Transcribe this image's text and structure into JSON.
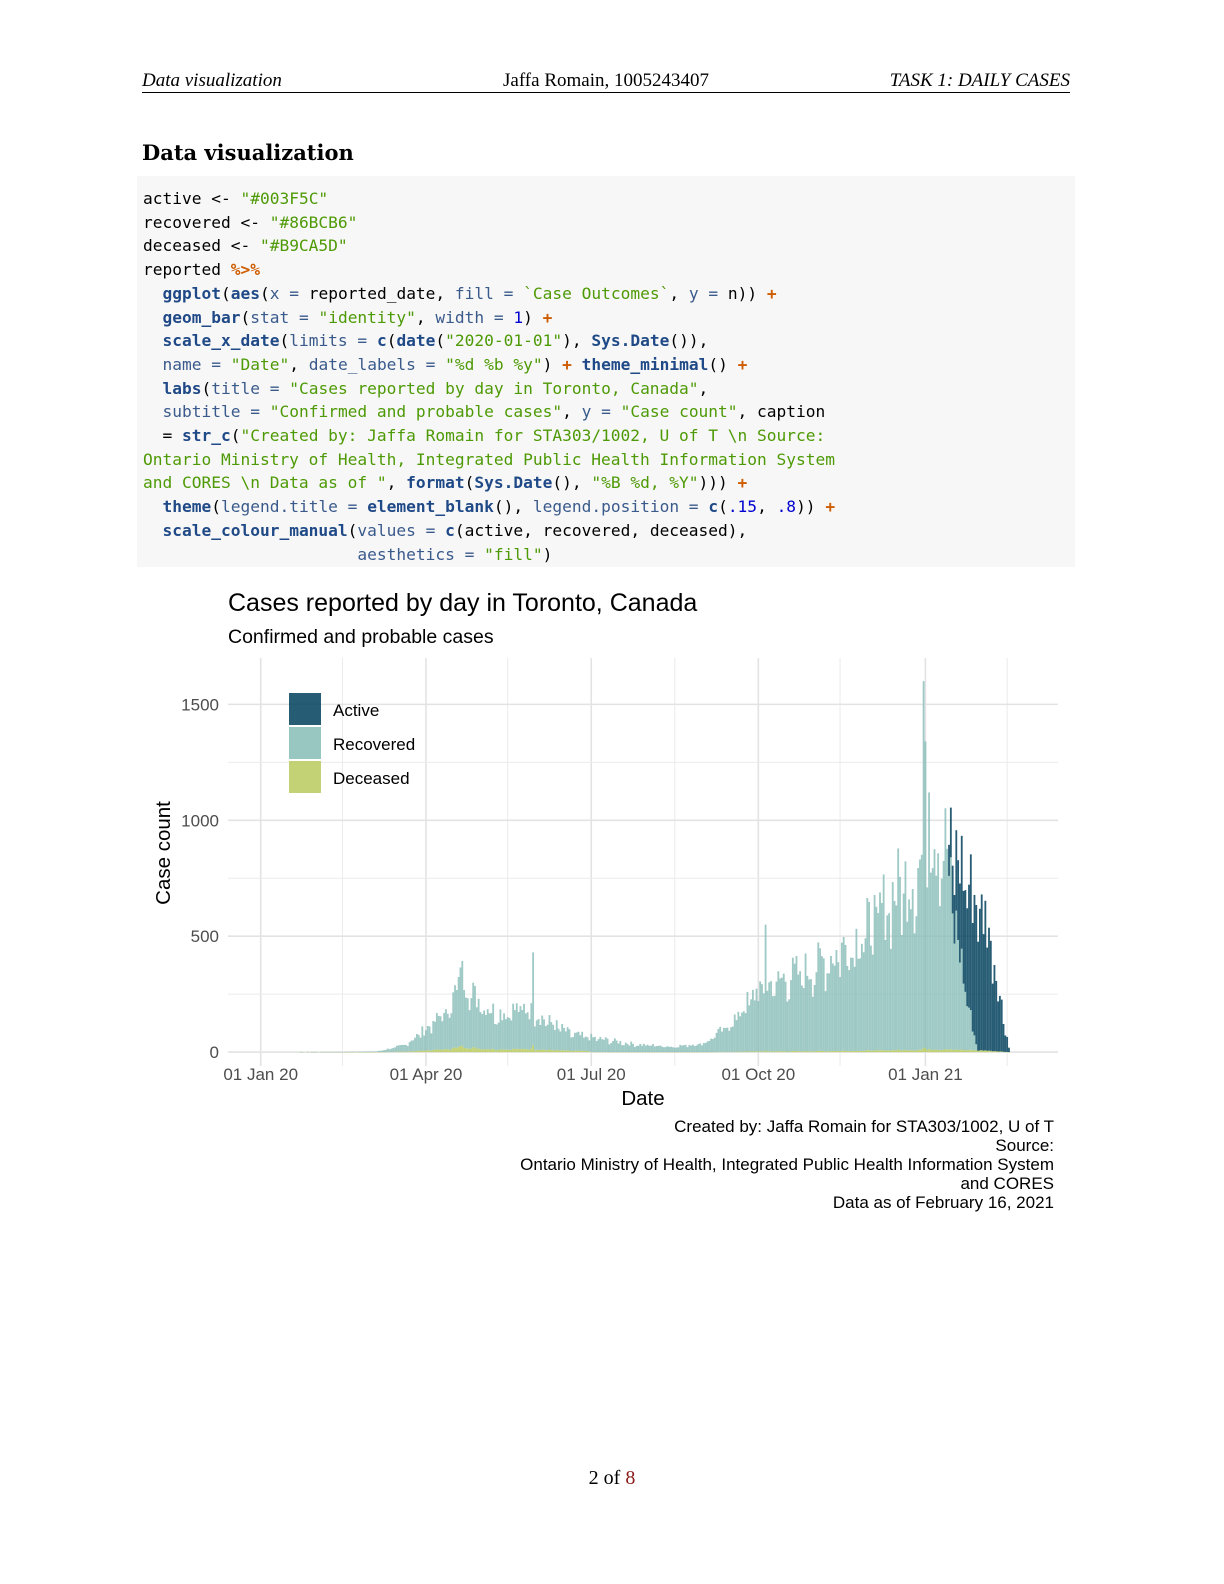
{
  "header": {
    "left": "Data visualization",
    "center": "Jaffa Romain, 1005243407",
    "right": "TASK 1: DAILY CASES"
  },
  "section_title": "Data visualization",
  "code": {
    "lines": [
      [
        [
          "t",
          "active <- "
        ],
        [
          "s",
          "\"#003F5C\""
        ]
      ],
      [
        [
          "t",
          "recovered <- "
        ],
        [
          "s",
          "\"#86BCB6\""
        ]
      ],
      [
        [
          "t",
          "deceased <- "
        ],
        [
          "s",
          "\"#B9CA5D\""
        ]
      ],
      [
        [
          "t",
          "reported "
        ],
        [
          "o",
          "%>%"
        ]
      ],
      [
        [
          "t",
          "  "
        ],
        [
          "f",
          "ggplot"
        ],
        [
          "t",
          "("
        ],
        [
          "f",
          "aes"
        ],
        [
          "t",
          "("
        ],
        [
          "a",
          "x"
        ],
        [
          "a",
          " = "
        ],
        [
          "t",
          "reported_date, "
        ],
        [
          "a",
          "fill"
        ],
        [
          "a",
          " = "
        ],
        [
          "s",
          "`Case Outcomes`"
        ],
        [
          "t",
          ", "
        ],
        [
          "a",
          "y"
        ],
        [
          "a",
          " = "
        ],
        [
          "t",
          "n)) "
        ],
        [
          "o",
          "+"
        ]
      ],
      [
        [
          "t",
          "  "
        ],
        [
          "f",
          "geom_bar"
        ],
        [
          "t",
          "("
        ],
        [
          "a",
          "stat"
        ],
        [
          "a",
          " = "
        ],
        [
          "s",
          "\"identity\""
        ],
        [
          "t",
          ", "
        ],
        [
          "a",
          "width"
        ],
        [
          "a",
          " = "
        ],
        [
          "n",
          "1"
        ],
        [
          "t",
          ") "
        ],
        [
          "o",
          "+"
        ]
      ],
      [
        [
          "t",
          "  "
        ],
        [
          "f",
          "scale_x_date"
        ],
        [
          "t",
          "("
        ],
        [
          "a",
          "limits"
        ],
        [
          "a",
          " = "
        ],
        [
          "f",
          "c"
        ],
        [
          "t",
          "("
        ],
        [
          "f",
          "date"
        ],
        [
          "t",
          "("
        ],
        [
          "s",
          "\"2020-01-01\""
        ],
        [
          "t",
          "), "
        ],
        [
          "f",
          "Sys.Date"
        ],
        [
          "t",
          "()),"
        ]
      ],
      [
        [
          "t",
          "  "
        ],
        [
          "a",
          "name"
        ],
        [
          "a",
          " = "
        ],
        [
          "s",
          "\"Date\""
        ],
        [
          "t",
          ", "
        ],
        [
          "a",
          "date_labels"
        ],
        [
          "a",
          " = "
        ],
        [
          "s",
          "\"%d %b %y\""
        ],
        [
          "t",
          ") "
        ],
        [
          "o",
          "+"
        ],
        [
          "t",
          " "
        ],
        [
          "f",
          "theme_minimal"
        ],
        [
          "t",
          "() "
        ],
        [
          "o",
          "+"
        ]
      ],
      [
        [
          "t",
          "  "
        ],
        [
          "f",
          "labs"
        ],
        [
          "t",
          "("
        ],
        [
          "a",
          "title"
        ],
        [
          "a",
          " = "
        ],
        [
          "s",
          "\"Cases reported by day in Toronto, Canada\""
        ],
        [
          "t",
          ","
        ]
      ],
      [
        [
          "t",
          "  "
        ],
        [
          "a",
          "subtitle"
        ],
        [
          "a",
          " = "
        ],
        [
          "s",
          "\"Confirmed and probable cases\""
        ],
        [
          "t",
          ", "
        ],
        [
          "a",
          "y"
        ],
        [
          "a",
          " = "
        ],
        [
          "s",
          "\"Case count\""
        ],
        [
          "t",
          ", caption"
        ]
      ],
      [
        [
          "t",
          "  = "
        ],
        [
          "f",
          "str_c"
        ],
        [
          "t",
          "("
        ],
        [
          "s",
          "\"Created by: Jaffa Romain for STA303/1002, U of T \\n Source:"
        ]
      ],
      [
        [
          "s",
          "Ontario Ministry of Health, Integrated Public Health Information System"
        ]
      ],
      [
        [
          "s",
          "and CORES \\n Data as of \""
        ],
        [
          "t",
          ", "
        ],
        [
          "f",
          "format"
        ],
        [
          "t",
          "("
        ],
        [
          "f",
          "Sys.Date"
        ],
        [
          "t",
          "(), "
        ],
        [
          "s",
          "\"%B %d, %Y\""
        ],
        [
          "t",
          ")))"
        ],
        [
          "t",
          " "
        ],
        [
          "o",
          "+"
        ]
      ],
      [
        [
          "t",
          "  "
        ],
        [
          "f",
          "theme"
        ],
        [
          "t",
          "("
        ],
        [
          "a",
          "legend.title"
        ],
        [
          "a",
          " = "
        ],
        [
          "f",
          "element_blank"
        ],
        [
          "t",
          "(), "
        ],
        [
          "a",
          "legend.position"
        ],
        [
          "a",
          " = "
        ],
        [
          "f",
          "c"
        ],
        [
          "t",
          "("
        ],
        [
          "n",
          ".15"
        ],
        [
          "t",
          ", "
        ],
        [
          "n",
          ".8"
        ],
        [
          "t",
          "))"
        ],
        [
          "t",
          " "
        ],
        [
          "o",
          "+"
        ]
      ],
      [
        [
          "t",
          "  "
        ],
        [
          "f",
          "scale_colour_manual"
        ],
        [
          "t",
          "("
        ],
        [
          "a",
          "values"
        ],
        [
          "a",
          " = "
        ],
        [
          "f",
          "c"
        ],
        [
          "t",
          "(active, recovered, deceased),"
        ]
      ],
      [
        [
          "t",
          "                      "
        ],
        [
          "a",
          "aesthetics"
        ],
        [
          "a",
          " = "
        ],
        [
          "s",
          "\"fill\""
        ],
        [
          "t",
          ")"
        ]
      ]
    ]
  },
  "chart_data": {
    "type": "bar",
    "stacked": true,
    "title": "Cases reported by day in Toronto, Canada",
    "subtitle": "Confirmed and probable cases",
    "xlabel": "Date",
    "ylabel": "Case count",
    "caption": [
      "Created by: Jaffa Romain for STA303/1002, U of T",
      "Source:",
      "Ontario Ministry of Health, Integrated Public Health Information System",
      "and CORES",
      "Data as of February 16, 2021"
    ],
    "x_ticks": [
      "01 Jan 20",
      "01 Apr 20",
      "01 Jul 20",
      "01 Oct 20",
      "01 Jan 21"
    ],
    "x_tick_dates": [
      "2020-01-01",
      "2020-04-01",
      "2020-07-01",
      "2020-10-01",
      "2021-01-01"
    ],
    "xlim": [
      "2019-12-14",
      "2021-03-15"
    ],
    "y_ticks": [
      0,
      500,
      1000,
      1500
    ],
    "ylim": [
      -60,
      1700
    ],
    "grid": true,
    "legend": {
      "position": "top-left",
      "entries": [
        {
          "name": "Active",
          "color": "#003F5C"
        },
        {
          "name": "Recovered",
          "color": "#86BCB6"
        },
        {
          "name": "Deceased",
          "color": "#B9CA5D"
        }
      ]
    },
    "colors": {
      "active": "#003F5C",
      "recovered": "#86BCB6",
      "deceased": "#B9CA5D"
    },
    "series_daily_totals_approx": {
      "start_date": "2020-01-01",
      "keyframes": [
        [
          "2020-01-01",
          0
        ],
        [
          "2020-02-15",
          1
        ],
        [
          "2020-03-05",
          3
        ],
        [
          "2020-03-20",
          30
        ],
        [
          "2020-04-05",
          130
        ],
        [
          "2020-04-15",
          210
        ],
        [
          "2020-04-20",
          360
        ],
        [
          "2020-04-28",
          250
        ],
        [
          "2020-05-10",
          175
        ],
        [
          "2020-05-25",
          200
        ],
        [
          "2020-06-05",
          150
        ],
        [
          "2020-06-20",
          80
        ],
        [
          "2020-07-05",
          60
        ],
        [
          "2020-07-25",
          35
        ],
        [
          "2020-08-15",
          25
        ],
        [
          "2020-09-01",
          40
        ],
        [
          "2020-09-15",
          120
        ],
        [
          "2020-10-01",
          280
        ],
        [
          "2020-10-15",
          330
        ],
        [
          "2020-11-01",
          380
        ],
        [
          "2020-11-15",
          460
        ],
        [
          "2020-12-01",
          560
        ],
        [
          "2020-12-15",
          720
        ],
        [
          "2020-12-28",
          820
        ],
        [
          "2021-01-05",
          1000
        ],
        [
          "2021-01-10",
          950
        ],
        [
          "2021-01-20",
          860
        ],
        [
          "2021-01-28",
          700
        ],
        [
          "2021-02-05",
          560
        ],
        [
          "2021-02-10",
          300
        ],
        [
          "2021-02-16",
          20
        ]
      ],
      "peaks": [
        [
          "2020-04-20",
          365
        ],
        [
          "2020-05-30",
          430
        ],
        [
          "2020-10-05",
          550
        ],
        [
          "2020-12-31",
          1600
        ],
        [
          "2021-01-01",
          1340
        ],
        [
          "2021-01-03",
          1120
        ]
      ],
      "active_from": "2021-01-14"
    }
  },
  "page_number": {
    "current": "2 of ",
    "total": "8"
  }
}
